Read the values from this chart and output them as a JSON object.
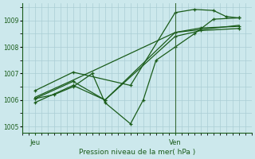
{
  "title": "Pression niveau de la mer( hPa )",
  "xlabel_jeu": "Jeu",
  "xlabel_ven": "Ven",
  "bg_color": "#cce8ec",
  "grid_color": "#aacdd4",
  "line_color": "#1a5c1a",
  "ylim": [
    1004.75,
    1009.65
  ],
  "yticks": [
    1005,
    1006,
    1007,
    1008,
    1009
  ],
  "xlim": [
    0,
    18
  ],
  "jeu_x": 1,
  "ven_x": 12,
  "xtick_minor_step": 1,
  "series": [
    {
      "x": [
        1,
        2.5,
        4,
        5.5,
        6.5,
        8.5,
        9.5,
        10.5,
        12,
        13.5,
        15,
        17
      ],
      "y": [
        1006.05,
        1006.2,
        1006.5,
        1007.0,
        1005.9,
        1005.1,
        1006.0,
        1007.5,
        1008.0,
        1008.5,
        1009.05,
        1009.1
      ],
      "marker": "+"
    },
    {
      "x": [
        1,
        4,
        6.5,
        12,
        14,
        17
      ],
      "y": [
        1006.05,
        1006.7,
        1006.0,
        1008.55,
        1008.72,
        1008.78
      ],
      "marker": "+"
    },
    {
      "x": [
        1,
        4,
        6.5,
        12,
        14,
        17
      ],
      "y": [
        1005.9,
        1006.55,
        1006.0,
        1008.4,
        1008.62,
        1008.7
      ],
      "marker": "+"
    },
    {
      "x": [
        1,
        4,
        8.5,
        12,
        13.5,
        15,
        16,
        17
      ],
      "y": [
        1006.35,
        1007.05,
        1006.55,
        1009.3,
        1009.42,
        1009.38,
        1009.15,
        1009.1
      ],
      "marker": "+"
    },
    {
      "x": [
        1,
        4,
        12,
        17
      ],
      "y": [
        1006.1,
        1006.75,
        1008.55,
        1008.82
      ],
      "marker": null
    }
  ],
  "ven_line_x": 12
}
